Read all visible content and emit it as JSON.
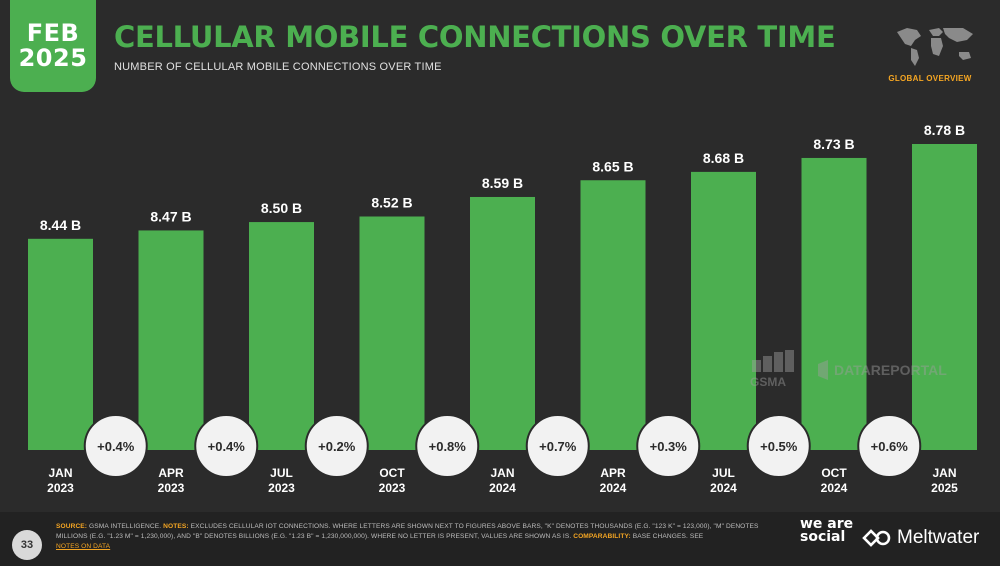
{
  "header": {
    "badge_month": "FEB",
    "badge_year": "2025",
    "title": "CELLULAR MOBILE CONNECTIONS OVER TIME",
    "subtitle": "NUMBER OF CELLULAR MOBILE CONNECTIONS OVER TIME",
    "region_label": "GLOBAL OVERVIEW",
    "region_icon": "world-map-icon"
  },
  "chart_data": {
    "type": "bar",
    "title": "CELLULAR MOBILE CONNECTIONS OVER TIME",
    "subtitle": "NUMBER OF CELLULAR MOBILE CONNECTIONS OVER TIME",
    "categories": [
      [
        "JAN",
        "2023"
      ],
      [
        "APR",
        "2023"
      ],
      [
        "JUL",
        "2023"
      ],
      [
        "OCT",
        "2023"
      ],
      [
        "JAN",
        "2024"
      ],
      [
        "APR",
        "2024"
      ],
      [
        "JUL",
        "2024"
      ],
      [
        "OCT",
        "2024"
      ],
      [
        "JAN",
        "2025"
      ]
    ],
    "values": [
      8.44,
      8.47,
      8.5,
      8.52,
      8.59,
      8.65,
      8.68,
      8.73,
      8.78
    ],
    "value_labels": [
      "8.44 B",
      "8.47 B",
      "8.50 B",
      "8.52 B",
      "8.59 B",
      "8.65 B",
      "8.68 B",
      "8.73 B",
      "8.78 B"
    ],
    "changes": [
      "+0.4%",
      "+0.4%",
      "+0.2%",
      "+0.8%",
      "+0.7%",
      "+0.3%",
      "+0.5%",
      "+0.6%"
    ],
    "unit": "B",
    "ylim": [
      0,
      9
    ],
    "grid": false,
    "legend": "none",
    "bar_color": "#4caf50"
  },
  "watermark": {
    "source_logo": "GSMA",
    "brand": "DATAREPORTAL"
  },
  "footer": {
    "page_number": "33",
    "source_label": "SOURCE:",
    "source_text": "GSMA INTELLIGENCE.",
    "notes_label": "NOTES:",
    "notes_text": "EXCLUDES CELLULAR IOT CONNECTIONS. WHERE LETTERS ARE SHOWN NEXT TO FIGURES ABOVE BARS, \"K\" DENOTES THOUSANDS (E.G. \"123 K\" = 123,000), \"M\" DENOTES MILLIONS (E.G. \"1.23 M\" = 1,230,000), AND \"B\" DENOTES BILLIONS (E.G. \"1.23 B\" = 1,230,000,000). WHERE NO LETTER IS PRESENT, VALUES ARE SHOWN AS IS.",
    "comparability_label": "COMPARABILITY:",
    "comparability_text": "BASE CHANGES. SEE",
    "notes_link": "NOTES ON DATA",
    "brand_we_are_social": "we are social",
    "brand_meltwater": "Meltwater"
  },
  "colors": {
    "background": "#2b2b2b",
    "accent_green": "#4caf50",
    "accent_orange": "#f5a623",
    "bubble": "#f2f2f2"
  }
}
